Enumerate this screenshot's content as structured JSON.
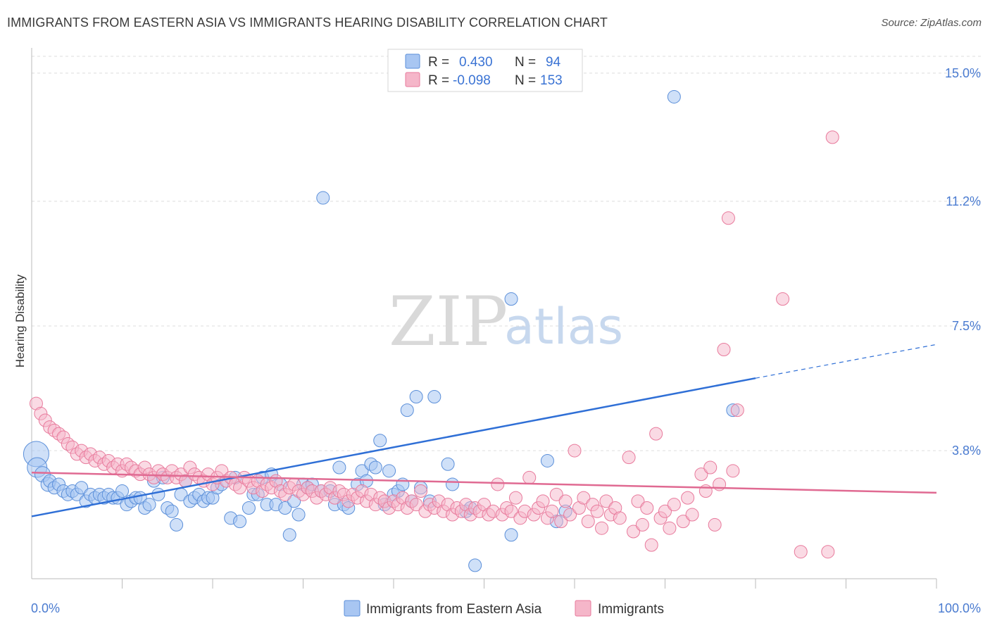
{
  "header": {
    "title": "IMMIGRANTS FROM EASTERN ASIA VS IMMIGRANTS HEARING DISABILITY CORRELATION CHART",
    "source": "Source: ZipAtlas.com"
  },
  "watermark": {
    "part1": "ZIP",
    "part2": "atlas"
  },
  "stats_box": {
    "rows": [
      {
        "r_label": "R =",
        "r_value": "0.430",
        "n_label": "N =",
        "n_value": "94",
        "color": "#a8c6f2"
      },
      {
        "r_label": "R =",
        "r_value": "-0.098",
        "n_label": "N =",
        "n_value": "153",
        "color": "#f5b6c9"
      }
    ]
  },
  "chart_data": {
    "type": "scatter",
    "title": "IMMIGRANTS FROM EASTERN ASIA VS IMMIGRANTS HEARING DISABILITY CORRELATION CHART",
    "xlabel": "",
    "ylabel": "Hearing Disability",
    "xlim": [
      0,
      100
    ],
    "ylim": [
      0,
      15.5
    ],
    "x_ticks": [
      "0.0%",
      "100.0%"
    ],
    "y_ticks": [
      {
        "value": 3.8,
        "label": "3.8%"
      },
      {
        "value": 7.5,
        "label": "7.5%"
      },
      {
        "value": 11.2,
        "label": "11.2%"
      },
      {
        "value": 15.0,
        "label": "15.0%"
      }
    ],
    "grid": "horizontal dashed",
    "legend_position": "bottom-center",
    "series": [
      {
        "name": "Immigrants from Eastern Asia",
        "color": "#a8c6f2",
        "stroke": "#5b8fd9",
        "trend_color": "#2f6fd6",
        "trend": {
          "x0": 0,
          "y0": 1.85,
          "x1": 80,
          "y1": 5.95,
          "dashed_to_x": 100,
          "dashed_to_y": 6.95
        },
        "points": [
          [
            0.5,
            3.7,
            18
          ],
          [
            0.6,
            3.3,
            14
          ],
          [
            1.2,
            3.1,
            11
          ],
          [
            1.8,
            2.8,
            10
          ],
          [
            2.0,
            2.9,
            9
          ],
          [
            2.5,
            2.7,
            9
          ],
          [
            3.0,
            2.8,
            9
          ],
          [
            3.5,
            2.6,
            9
          ],
          [
            4.0,
            2.5,
            9
          ],
          [
            4.5,
            2.6,
            9
          ],
          [
            5.0,
            2.5,
            9
          ],
          [
            5.5,
            2.7,
            9
          ],
          [
            6.0,
            2.3,
            9
          ],
          [
            6.5,
            2.5,
            9
          ],
          [
            7.0,
            2.4,
            9
          ],
          [
            7.5,
            2.5,
            9
          ],
          [
            8.0,
            2.4,
            9
          ],
          [
            8.5,
            2.5,
            9
          ],
          [
            9.0,
            2.4,
            9
          ],
          [
            9.5,
            2.4,
            9
          ],
          [
            10.0,
            2.6,
            9
          ],
          [
            10.5,
            2.2,
            9
          ],
          [
            11.0,
            2.3,
            9
          ],
          [
            11.5,
            2.4,
            9
          ],
          [
            12.0,
            2.4,
            9
          ],
          [
            12.5,
            2.1,
            9
          ],
          [
            13.0,
            2.2,
            9
          ],
          [
            13.5,
            2.9,
            9
          ],
          [
            14.0,
            2.5,
            9
          ],
          [
            14.5,
            3.0,
            9
          ],
          [
            15.0,
            2.1,
            9
          ],
          [
            15.5,
            2.0,
            9
          ],
          [
            16.0,
            1.6,
            9
          ],
          [
            16.5,
            2.5,
            9
          ],
          [
            17.0,
            2.9,
            9
          ],
          [
            17.5,
            2.3,
            9
          ],
          [
            18.0,
            2.4,
            9
          ],
          [
            18.5,
            2.5,
            9
          ],
          [
            19.0,
            2.3,
            9
          ],
          [
            19.5,
            2.4,
            9
          ],
          [
            20.0,
            2.4,
            9
          ],
          [
            20.5,
            2.7,
            9
          ],
          [
            21.0,
            2.8,
            9
          ],
          [
            22.0,
            1.8,
            9
          ],
          [
            22.5,
            3.0,
            9
          ],
          [
            23.0,
            1.7,
            9
          ],
          [
            24.0,
            2.1,
            9
          ],
          [
            24.5,
            2.5,
            9
          ],
          [
            25.0,
            2.5,
            9
          ],
          [
            25.5,
            3.0,
            9
          ],
          [
            26.0,
            2.2,
            9
          ],
          [
            26.5,
            3.1,
            9
          ],
          [
            27.0,
            2.2,
            9
          ],
          [
            27.5,
            2.8,
            9
          ],
          [
            28.0,
            2.1,
            9
          ],
          [
            28.5,
            1.3,
            9
          ],
          [
            29.0,
            2.3,
            9
          ],
          [
            29.5,
            1.9,
            9
          ],
          [
            30.0,
            2.8,
            9
          ],
          [
            30.5,
            2.7,
            9
          ],
          [
            31.0,
            2.8,
            9
          ],
          [
            32.0,
            2.6,
            9
          ],
          [
            33.0,
            2.6,
            9
          ],
          [
            33.5,
            2.2,
            9
          ],
          [
            34.0,
            3.3,
            9
          ],
          [
            34.5,
            2.2,
            9
          ],
          [
            35.0,
            2.1,
            9
          ],
          [
            36.0,
            2.8,
            9
          ],
          [
            36.5,
            3.2,
            9
          ],
          [
            37.0,
            2.9,
            9
          ],
          [
            37.5,
            3.4,
            9
          ],
          [
            38.0,
            3.3,
            9
          ],
          [
            38.5,
            4.1,
            9
          ],
          [
            39.0,
            2.2,
            9
          ],
          [
            39.5,
            3.2,
            9
          ],
          [
            40.0,
            2.5,
            9
          ],
          [
            40.5,
            2.6,
            9
          ],
          [
            41.0,
            2.8,
            9
          ],
          [
            41.5,
            5.0,
            9
          ],
          [
            42.0,
            2.3,
            9
          ],
          [
            42.5,
            5.4,
            9
          ],
          [
            43.0,
            2.7,
            9
          ],
          [
            44.0,
            2.3,
            9
          ],
          [
            44.5,
            5.4,
            9
          ],
          [
            46.0,
            3.4,
            9
          ],
          [
            46.5,
            2.8,
            9
          ],
          [
            48.0,
            2.0,
            9
          ],
          [
            48.5,
            2.1,
            9
          ],
          [
            49.0,
            0.4,
            9
          ],
          [
            53.0,
            1.3,
            9
          ],
          [
            57.0,
            3.5,
            9
          ],
          [
            58.0,
            1.7,
            9
          ],
          [
            59.0,
            2.0,
            9
          ],
          [
            71.0,
            14.3,
            9
          ],
          [
            32.2,
            11.3,
            9
          ],
          [
            53.0,
            8.3,
            9
          ],
          [
            77.5,
            5.0,
            9
          ]
        ]
      },
      {
        "name": "Immigrants",
        "color": "#f5b6c9",
        "stroke": "#e87a9c",
        "trend_color": "#e06a92",
        "trend": {
          "x0": 0,
          "y0": 3.15,
          "x1": 100,
          "y1": 2.55
        },
        "points": [
          [
            0.5,
            5.2
          ],
          [
            1.0,
            4.9
          ],
          [
            1.5,
            4.7
          ],
          [
            2.0,
            4.5
          ],
          [
            2.5,
            4.4
          ],
          [
            3.0,
            4.3
          ],
          [
            3.5,
            4.2
          ],
          [
            4.0,
            4.0
          ],
          [
            4.5,
            3.9
          ],
          [
            5.0,
            3.7
          ],
          [
            5.5,
            3.8
          ],
          [
            6.0,
            3.6
          ],
          [
            6.5,
            3.7
          ],
          [
            7.0,
            3.5
          ],
          [
            7.5,
            3.6
          ],
          [
            8.0,
            3.4
          ],
          [
            8.5,
            3.5
          ],
          [
            9.0,
            3.3
          ],
          [
            9.5,
            3.4
          ],
          [
            10.0,
            3.2
          ],
          [
            10.5,
            3.4
          ],
          [
            11.0,
            3.3
          ],
          [
            11.5,
            3.2
          ],
          [
            12.0,
            3.1
          ],
          [
            12.5,
            3.3
          ],
          [
            13.0,
            3.1
          ],
          [
            13.5,
            3.0
          ],
          [
            14.0,
            3.2
          ],
          [
            14.5,
            3.1
          ],
          [
            15.0,
            3.0
          ],
          [
            15.5,
            3.2
          ],
          [
            16.0,
            3.0
          ],
          [
            16.5,
            3.1
          ],
          [
            17.0,
            2.9
          ],
          [
            17.5,
            3.3
          ],
          [
            18.0,
            3.1
          ],
          [
            18.5,
            3.0
          ],
          [
            19.0,
            2.9
          ],
          [
            19.5,
            3.1
          ],
          [
            20.0,
            2.8
          ],
          [
            20.5,
            3.0
          ],
          [
            21.0,
            3.2
          ],
          [
            21.5,
            2.9
          ],
          [
            22.0,
            3.0
          ],
          [
            22.5,
            2.8
          ],
          [
            23.0,
            2.7
          ],
          [
            23.5,
            3.0
          ],
          [
            24.0,
            2.9
          ],
          [
            24.5,
            2.7
          ],
          [
            25.0,
            2.9
          ],
          [
            25.5,
            2.6
          ],
          [
            26.0,
            2.8
          ],
          [
            26.5,
            2.7
          ],
          [
            27.0,
            2.9
          ],
          [
            27.5,
            2.6
          ],
          [
            28.0,
            2.5
          ],
          [
            28.5,
            2.7
          ],
          [
            29.0,
            2.8
          ],
          [
            29.5,
            2.6
          ],
          [
            30.0,
            2.5
          ],
          [
            30.5,
            2.7
          ],
          [
            31.0,
            2.6
          ],
          [
            31.5,
            2.4
          ],
          [
            32.0,
            2.6
          ],
          [
            32.5,
            2.5
          ],
          [
            33.0,
            2.7
          ],
          [
            33.5,
            2.4
          ],
          [
            34.0,
            2.6
          ],
          [
            34.5,
            2.5
          ],
          [
            35.0,
            2.3
          ],
          [
            35.5,
            2.5
          ],
          [
            36.0,
            2.4
          ],
          [
            36.5,
            2.6
          ],
          [
            37.0,
            2.3
          ],
          [
            37.5,
            2.5
          ],
          [
            38.0,
            2.2
          ],
          [
            38.5,
            2.4
          ],
          [
            39.0,
            2.3
          ],
          [
            39.5,
            2.1
          ],
          [
            40.0,
            2.3
          ],
          [
            40.5,
            2.2
          ],
          [
            41.0,
            2.4
          ],
          [
            41.5,
            2.1
          ],
          [
            42.0,
            2.3
          ],
          [
            42.5,
            2.2
          ],
          [
            43.0,
            2.6
          ],
          [
            43.5,
            2.0
          ],
          [
            44.0,
            2.2
          ],
          [
            44.5,
            2.1
          ],
          [
            45.0,
            2.3
          ],
          [
            45.5,
            2.0
          ],
          [
            46.0,
            2.2
          ],
          [
            46.5,
            1.9
          ],
          [
            47.0,
            2.1
          ],
          [
            47.5,
            2.0
          ],
          [
            48.0,
            2.2
          ],
          [
            48.5,
            1.9
          ],
          [
            49.0,
            2.1
          ],
          [
            49.5,
            2.0
          ],
          [
            50.0,
            2.2
          ],
          [
            50.5,
            1.9
          ],
          [
            51.0,
            2.0
          ],
          [
            51.5,
            2.8
          ],
          [
            52.0,
            1.9
          ],
          [
            52.5,
            2.1
          ],
          [
            53.0,
            2.0
          ],
          [
            53.5,
            2.4
          ],
          [
            54.0,
            1.8
          ],
          [
            54.5,
            2.0
          ],
          [
            55.0,
            3.0
          ],
          [
            55.5,
            1.9
          ],
          [
            56.0,
            2.1
          ],
          [
            56.5,
            2.3
          ],
          [
            57.0,
            1.8
          ],
          [
            57.5,
            2.0
          ],
          [
            58.0,
            2.5
          ],
          [
            58.5,
            1.7
          ],
          [
            59.0,
            2.3
          ],
          [
            59.5,
            1.9
          ],
          [
            60.0,
            3.8
          ],
          [
            60.5,
            2.1
          ],
          [
            61.0,
            2.4
          ],
          [
            61.5,
            1.7
          ],
          [
            62.0,
            2.2
          ],
          [
            62.5,
            2.0
          ],
          [
            63.0,
            1.5
          ],
          [
            63.5,
            2.3
          ],
          [
            64.0,
            1.9
          ],
          [
            64.5,
            2.1
          ],
          [
            65.0,
            1.8
          ],
          [
            66.0,
            3.6
          ],
          [
            66.5,
            1.4
          ],
          [
            67.0,
            2.3
          ],
          [
            67.5,
            1.6
          ],
          [
            68.0,
            2.1
          ],
          [
            68.5,
            1.0
          ],
          [
            69.0,
            4.3
          ],
          [
            69.5,
            1.8
          ],
          [
            70.0,
            2.0
          ],
          [
            70.5,
            1.5
          ],
          [
            71.0,
            2.2
          ],
          [
            72.0,
            1.7
          ],
          [
            72.5,
            2.4
          ],
          [
            73.0,
            1.9
          ],
          [
            74.0,
            3.1
          ],
          [
            74.5,
            2.6
          ],
          [
            75.0,
            3.3
          ],
          [
            75.5,
            1.6
          ],
          [
            76.0,
            2.8
          ],
          [
            77.5,
            3.2
          ],
          [
            78.0,
            5.0
          ],
          [
            76.5,
            6.8
          ],
          [
            77.0,
            10.7
          ],
          [
            83.0,
            8.3
          ],
          [
            88.0,
            0.8
          ],
          [
            88.5,
            13.1
          ],
          [
            85.0,
            0.8
          ]
        ]
      }
    ]
  },
  "legend": {
    "items": [
      {
        "label": "Immigrants from Eastern Asia",
        "color": "#a8c6f2",
        "stroke": "#5b8fd9"
      },
      {
        "label": "Immigrants",
        "color": "#f5b6c9",
        "stroke": "#e87a9c"
      }
    ]
  }
}
